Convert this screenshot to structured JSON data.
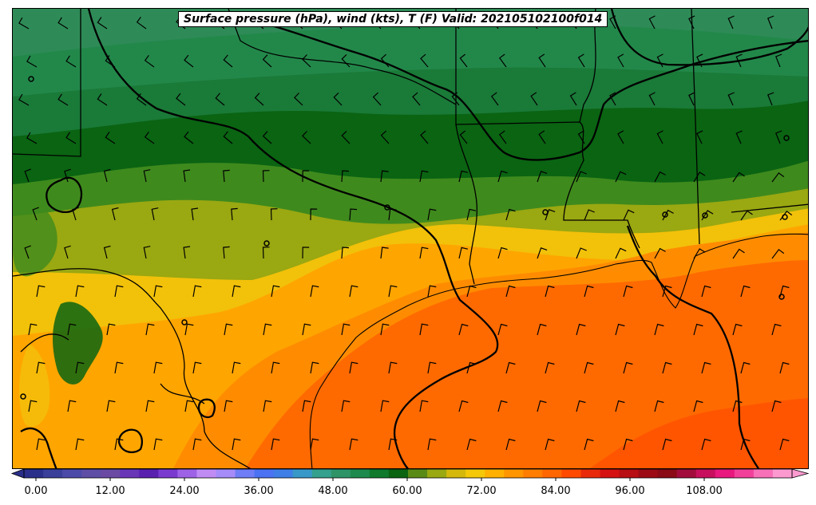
{
  "map": {
    "title": "Surface pressure (hPa), wind (kts), T (F) Valid: 202105102100f014",
    "fill_colors": {
      "temp_45": "#2e8b57",
      "temp_50": "#22884a",
      "temp_55": "#1a7a38",
      "temp_60": "#0a6412",
      "temp_62": "#3f8a1d",
      "temp_65": "#9aa811",
      "temp_68": "#f2c10a",
      "temp_70": "#ffa500",
      "temp_75": "#ff8c00",
      "temp_78": "#ff6a00",
      "temp_80": "#ff5500"
    }
  },
  "colorbar": {
    "colors": [
      "#2a2f8a",
      "#3a3f9a",
      "#4c4aa8",
      "#5e4ea6",
      "#6b4aa4",
      "#6a36b8",
      "#5920b0",
      "#7a3ad0",
      "#9e62e6",
      "#c08cf4",
      "#a58cf8",
      "#6f7df6",
      "#4a72f2",
      "#3f7ee6",
      "#3898c8",
      "#34a08e",
      "#2e9467",
      "#1f8a4d",
      "#0f7a2c",
      "#0a6412",
      "#5a8a16",
      "#9aa811",
      "#d4b80c",
      "#f5c80a",
      "#ffb000",
      "#ff9500",
      "#ff7d00",
      "#ff6600",
      "#ff4a00",
      "#e82a0a",
      "#d41010",
      "#b80d12",
      "#9c0b14",
      "#8a0a16",
      "#a20c3c",
      "#c80f5e",
      "#e8187e",
      "#f2409a",
      "#f870b8",
      "#fc9ad0"
    ],
    "ticks": [
      "0.00",
      "12.00",
      "24.00",
      "36.00",
      "48.00",
      "60.00",
      "72.00",
      "84.00",
      "96.00",
      "108.00"
    ]
  }
}
